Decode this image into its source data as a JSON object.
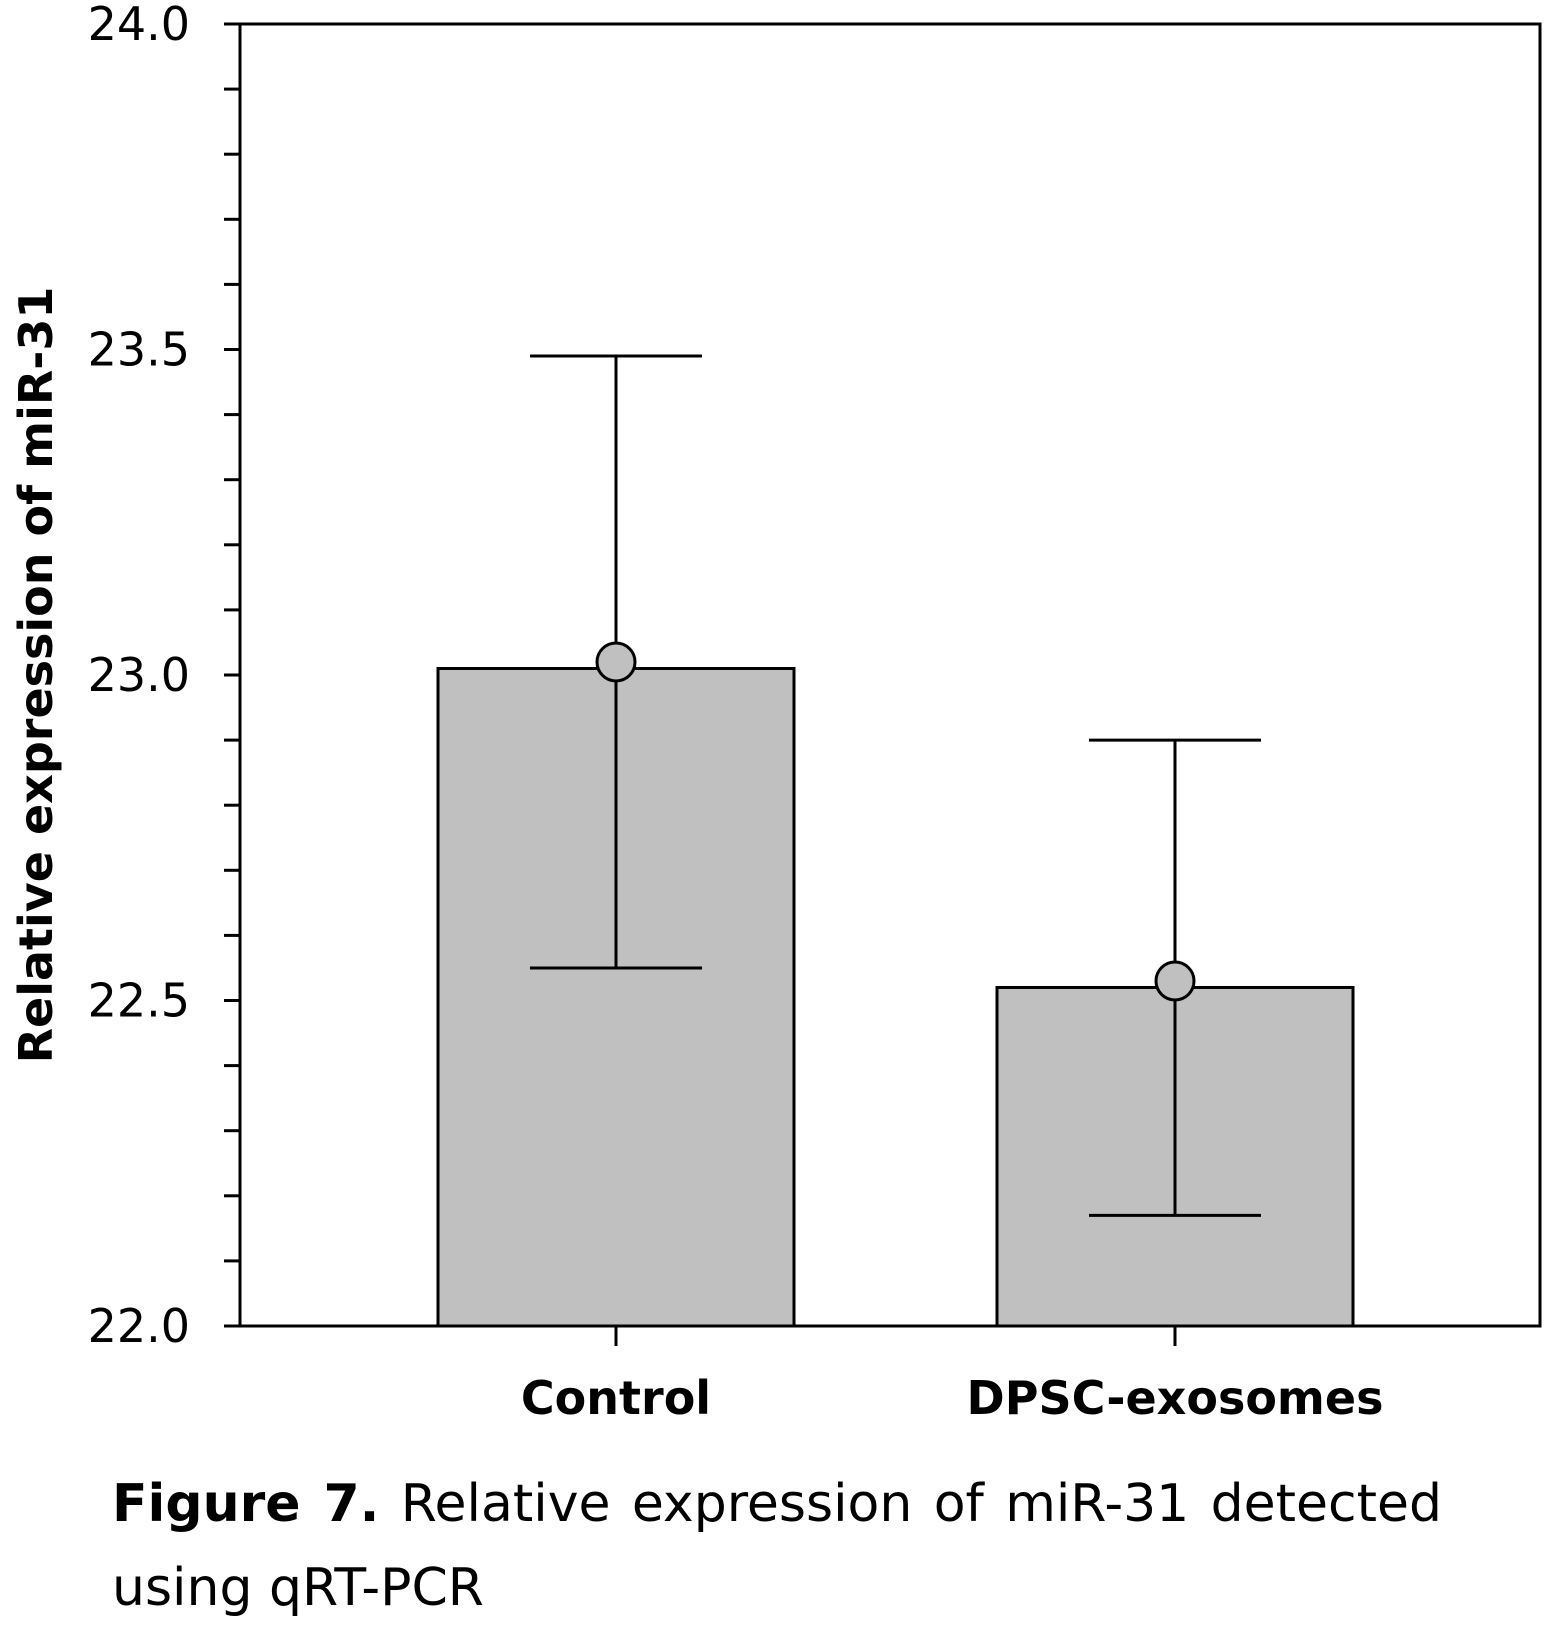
{
  "chart_data": {
    "type": "bar",
    "categories": [
      "Control",
      "DPSC-exosomes"
    ],
    "values": [
      23.01,
      22.52
    ],
    "error_low": [
      22.55,
      22.17
    ],
    "error_high": [
      23.49,
      22.9
    ],
    "points": [
      23.02,
      22.53
    ],
    "ylabel": "Relative expression of miR-31",
    "xlabel": "",
    "ylim": [
      22.0,
      24.0
    ],
    "yticks": [
      "22.0",
      "22.5",
      "23.0",
      "23.5",
      "24.0"
    ],
    "grid": false,
    "colors": {
      "bar": "#c0c0c0",
      "point": "#c0c0c0",
      "line": "#000000"
    }
  },
  "caption": {
    "label": "Figure 7.",
    "text": "Relative expression of miR-31 detected using qRT-PCR"
  }
}
